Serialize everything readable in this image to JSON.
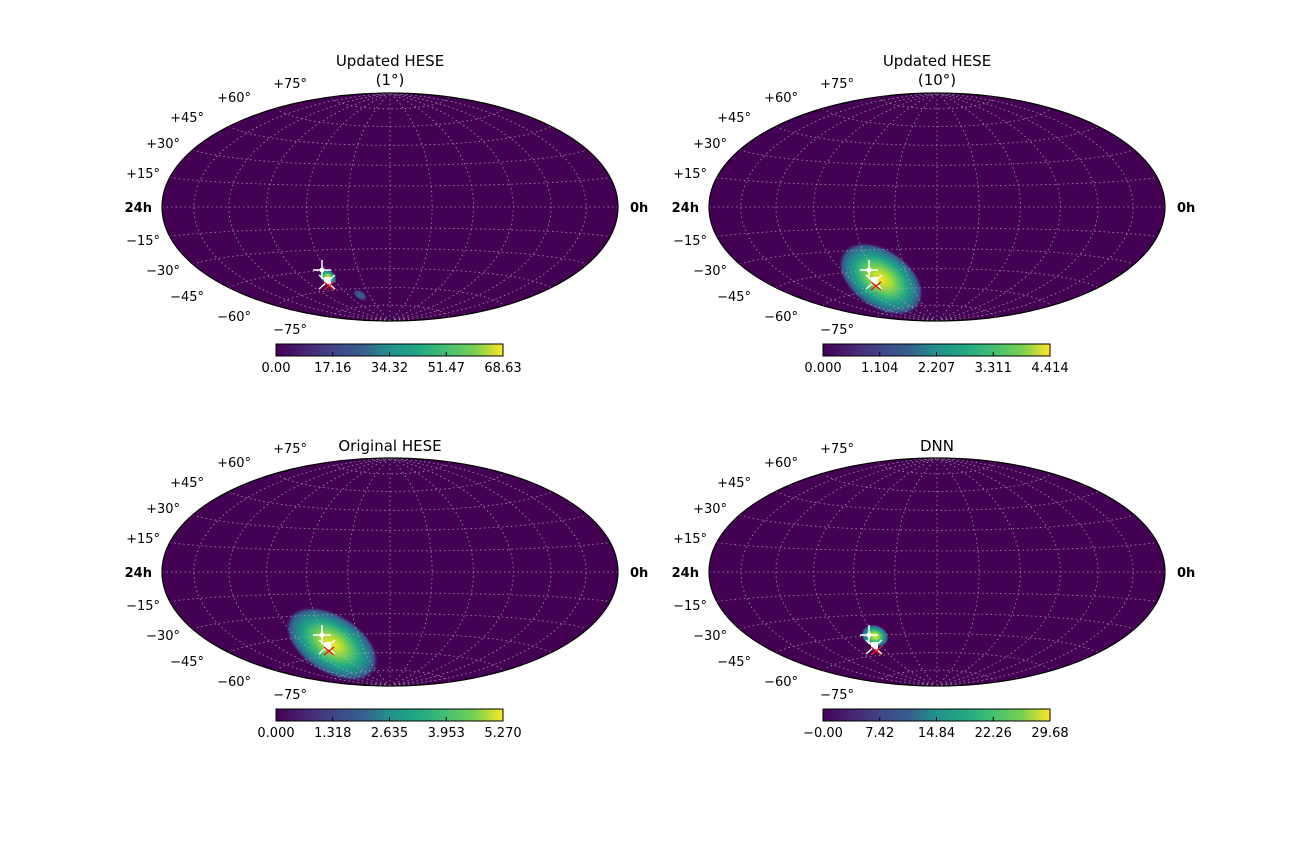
{
  "chart_data": [
    {
      "type": "heatmap",
      "projection": "hammer",
      "title": [
        "Updated HESE",
        "(1°)"
      ],
      "colormap": "viridis",
      "colorbar_ticks": [
        "0.00",
        "17.16",
        "34.32",
        "51.47",
        "68.63"
      ],
      "colorbar_range": [
        0,
        68.63
      ],
      "dec_labels": [
        "+75°",
        "+60°",
        "+45°",
        "+30°",
        "+15°",
        "−15°",
        "−30°",
        "−45°",
        "−60°",
        "−75°"
      ],
      "ra_labels": {
        "left": "24h",
        "right": "0h"
      },
      "hotspot": {
        "spread": "narrow",
        "secondary_tail": true
      }
    },
    {
      "type": "heatmap",
      "projection": "hammer",
      "title": [
        "Updated HESE",
        "(10°)"
      ],
      "colormap": "viridis",
      "colorbar_ticks": [
        "0.000",
        "1.104",
        "2.207",
        "3.311",
        "4.414"
      ],
      "colorbar_range": [
        0,
        4.414
      ],
      "dec_labels": [
        "+75°",
        "+60°",
        "+45°",
        "+30°",
        "+15°",
        "−15°",
        "−30°",
        "−45°",
        "−60°",
        "−75°"
      ],
      "ra_labels": {
        "left": "24h",
        "right": "0h"
      },
      "hotspot": {
        "spread": "wide"
      }
    },
    {
      "type": "heatmap",
      "projection": "hammer",
      "title": [
        "Original HESE"
      ],
      "colormap": "viridis",
      "colorbar_ticks": [
        "0.000",
        "1.318",
        "2.635",
        "3.953",
        "5.270"
      ],
      "colorbar_range": [
        0,
        5.27
      ],
      "dec_labels": [
        "+75°",
        "+60°",
        "+45°",
        "+30°",
        "+15°",
        "−15°",
        "−30°",
        "−45°",
        "−60°",
        "−75°"
      ],
      "ra_labels": {
        "left": "24h",
        "right": "0h"
      },
      "hotspot": {
        "spread": "wide"
      }
    },
    {
      "type": "heatmap",
      "projection": "hammer",
      "title": [
        "DNN"
      ],
      "colormap": "viridis",
      "colorbar_ticks": [
        "−0.00",
        "7.42",
        "14.84",
        "22.26",
        "29.68"
      ],
      "colorbar_range": [
        0,
        29.68
      ],
      "dec_labels": [
        "+75°",
        "+60°",
        "+45°",
        "+30°",
        "+15°",
        "−15°",
        "−30°",
        "−45°",
        "−60°",
        "−75°"
      ],
      "ra_labels": {
        "left": "24h",
        "right": "0h"
      },
      "hotspot": {
        "spread": "small"
      }
    }
  ]
}
